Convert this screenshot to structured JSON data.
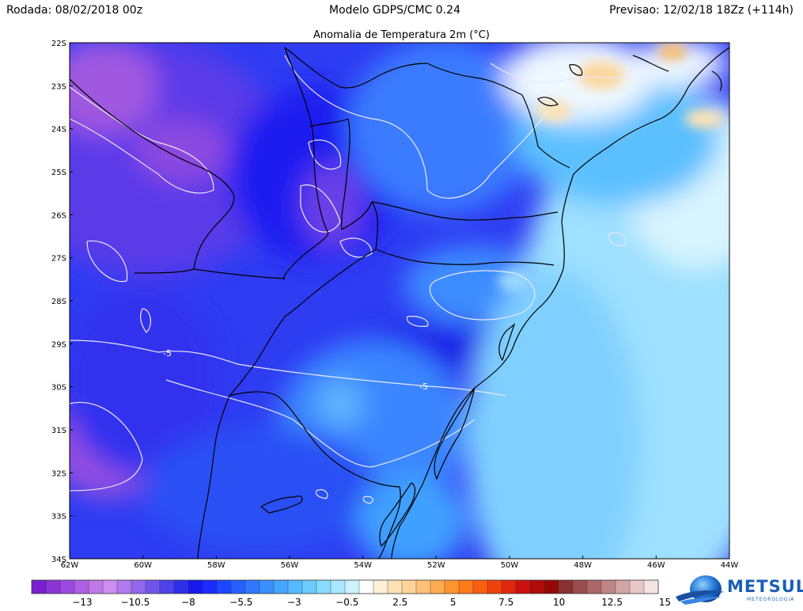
{
  "header": {
    "run": "Rodada: 08/02/2018 00z",
    "model": "Modelo GDPS/CMC 0.24",
    "forecast": "Previsao: 12/02/18 18Zz (+114h)"
  },
  "map": {
    "title": "Anomalia de Temperatura 2m (°C)",
    "lat_labels": [
      "22S",
      "23S",
      "24S",
      "25S",
      "26S",
      "27S",
      "28S",
      "29S",
      "30S",
      "31S",
      "32S",
      "33S",
      "34S"
    ],
    "lon_labels": [
      "62W",
      "60W",
      "58W",
      "56W",
      "54W",
      "52W",
      "50W",
      "48W",
      "46W",
      "44W"
    ],
    "contour_labels": [
      "-5",
      "-5"
    ],
    "extent": {
      "lon": [
        -62,
        -44
      ],
      "lat": [
        -34,
        -22
      ]
    }
  },
  "legend": {
    "labels": [
      "−13",
      "−10.5",
      "−8",
      "−5.5",
      "−3",
      "−0.5",
      "2.5",
      "5",
      "7.5",
      "10",
      "12.5",
      "15"
    ],
    "colors": [
      "#7a1fd0",
      "#8b34d8",
      "#9c4ade",
      "#ae60e4",
      "#be78ea",
      "#cc8fee",
      "#b27af0",
      "#9068ee",
      "#6f55ec",
      "#4d42ea",
      "#2e2fe8",
      "#1818f0",
      "#1a2cff",
      "#1f46ff",
      "#2760ff",
      "#2f78ff",
      "#3990ff",
      "#45a6ff",
      "#55baff",
      "#6accff",
      "#88dcff",
      "#abe8ff",
      "#cdf2ff",
      "#ffffff",
      "#fff0d8",
      "#ffe2b8",
      "#ffd498",
      "#ffc078",
      "#ffab50",
      "#ff9430",
      "#ff7a18",
      "#f95f10",
      "#ee440c",
      "#e0280c",
      "#cc1010",
      "#b00a0a",
      "#960808",
      "#883030",
      "#9a4c4c",
      "#ac6868",
      "#bf8686",
      "#d2a6a6",
      "#e6c8c8",
      "#f5e4e4"
    ]
  },
  "logo": {
    "name": "METSUL",
    "sub": "METEOROLOGIA",
    "icon": "globe-icon"
  }
}
